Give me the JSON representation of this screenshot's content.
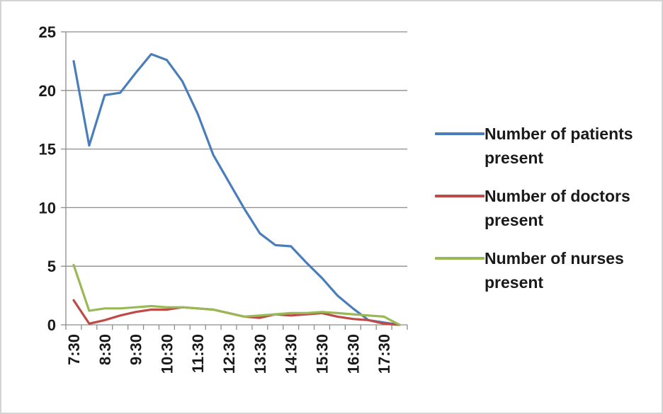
{
  "chart_data": {
    "type": "line",
    "title": "",
    "xlabel": "",
    "ylabel": "",
    "ylim": [
      0,
      25
    ],
    "y_ticks": [
      0,
      5,
      10,
      15,
      20,
      25
    ],
    "grid": "horizontal",
    "legend_position": "right",
    "x": [
      "7:30",
      "8:00",
      "8:30",
      "9:00",
      "9:30",
      "10:00",
      "10:30",
      "11:00",
      "11:30",
      "12:00",
      "12:30",
      "13:00",
      "13:30",
      "14:00",
      "14:30",
      "15:00",
      "15:30",
      "16:00",
      "16:30",
      "17:00",
      "17:30",
      "18:00"
    ],
    "x_tick_labels": [
      "7:30",
      "8:30",
      "9:30",
      "10:30",
      "11:30",
      "12:30",
      "13:30",
      "14:30",
      "15:30",
      "16:30",
      "17:30"
    ],
    "series": [
      {
        "name": "Number of patients present",
        "color": "#4a7ebb",
        "values": [
          22.5,
          15.3,
          19.6,
          19.8,
          21.5,
          23.1,
          22.6,
          20.8,
          18.0,
          14.5,
          12.2,
          9.9,
          7.8,
          6.8,
          6.7,
          5.3,
          4.0,
          2.5,
          1.4,
          0.4,
          0.2,
          0.0
        ]
      },
      {
        "name": "Number of doctors present",
        "color": "#be4b48",
        "values": [
          2.1,
          0.1,
          0.4,
          0.8,
          1.1,
          1.3,
          1.3,
          1.5,
          1.4,
          1.3,
          1.0,
          0.7,
          0.6,
          0.9,
          0.8,
          0.9,
          1.0,
          0.7,
          0.5,
          0.4,
          0.1,
          0.0
        ]
      },
      {
        "name": "Number of nurses present",
        "color": "#98b954",
        "values": [
          5.1,
          1.2,
          1.4,
          1.4,
          1.5,
          1.6,
          1.5,
          1.5,
          1.4,
          1.3,
          1.0,
          0.7,
          0.8,
          0.9,
          1.0,
          1.0,
          1.1,
          1.0,
          0.9,
          0.8,
          0.7,
          0.0
        ]
      }
    ]
  }
}
